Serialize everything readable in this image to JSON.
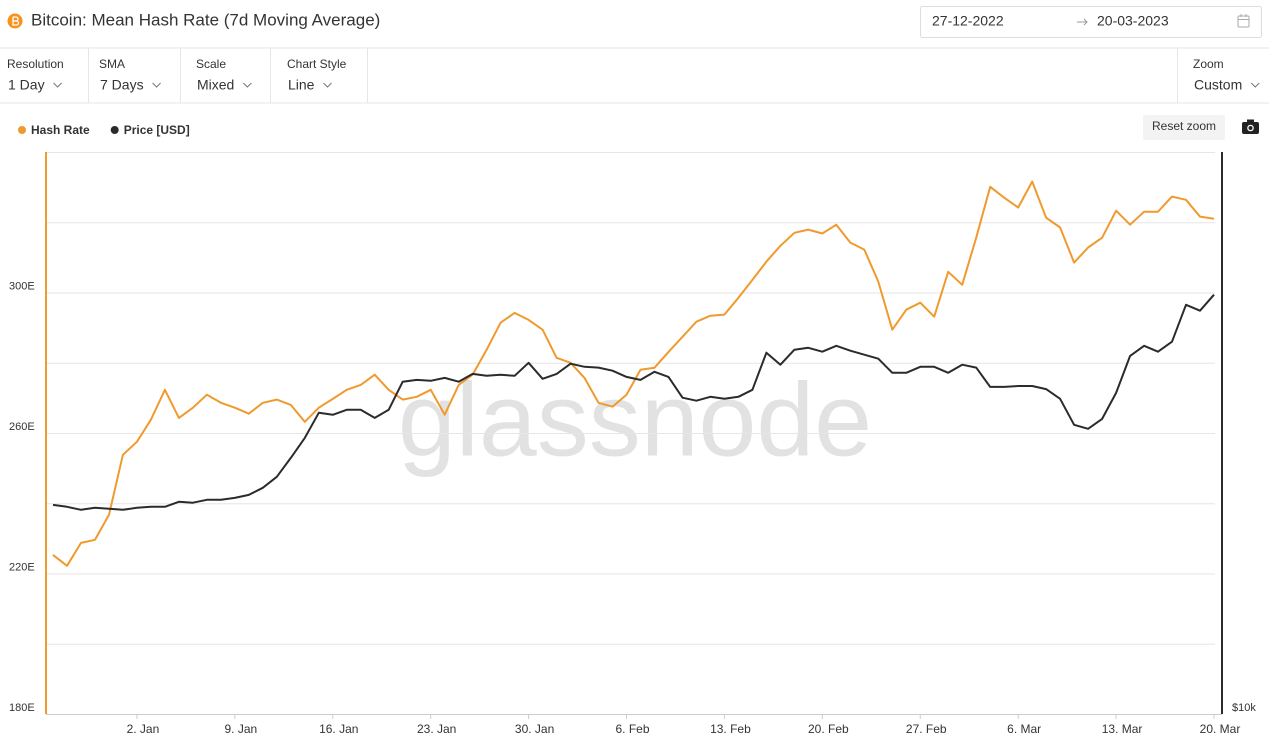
{
  "header": {
    "title": "Bitcoin: Mean Hash Rate (7d Moving Average)",
    "date_from": "27-12-2022",
    "date_to": "20-03-2023"
  },
  "controls": [
    {
      "label": "Resolution",
      "value": "1 Day"
    },
    {
      "label": "SMA",
      "value": "7 Days"
    },
    {
      "label": "Scale",
      "value": "Mixed"
    },
    {
      "label": "Chart Style",
      "value": "Line"
    },
    {
      "label": "Zoom",
      "value": "Custom"
    }
  ],
  "reset_zoom": "Reset zoom",
  "chart_data": {
    "type": "line",
    "watermark": "glassnode",
    "x": [
      "2022-12-27",
      "2022-12-28",
      "2022-12-29",
      "2022-12-30",
      "2022-12-31",
      "2023-01-01",
      "2023-01-02",
      "2023-01-03",
      "2023-01-04",
      "2023-01-05",
      "2023-01-06",
      "2023-01-07",
      "2023-01-08",
      "2023-01-09",
      "2023-01-10",
      "2023-01-11",
      "2023-01-12",
      "2023-01-13",
      "2023-01-14",
      "2023-01-15",
      "2023-01-16",
      "2023-01-17",
      "2023-01-18",
      "2023-01-19",
      "2023-01-20",
      "2023-01-21",
      "2023-01-22",
      "2023-01-23",
      "2023-01-24",
      "2023-01-25",
      "2023-01-26",
      "2023-01-27",
      "2023-01-28",
      "2023-01-29",
      "2023-01-30",
      "2023-01-31",
      "2023-02-01",
      "2023-02-02",
      "2023-02-03",
      "2023-02-04",
      "2023-02-05",
      "2023-02-06",
      "2023-02-07",
      "2023-02-08",
      "2023-02-09",
      "2023-02-10",
      "2023-02-11",
      "2023-02-12",
      "2023-02-13",
      "2023-02-14",
      "2023-02-15",
      "2023-02-16",
      "2023-02-17",
      "2023-02-18",
      "2023-02-19",
      "2023-02-20",
      "2023-02-21",
      "2023-02-22",
      "2023-02-23",
      "2023-02-24",
      "2023-02-25",
      "2023-02-26",
      "2023-02-27",
      "2023-02-28",
      "2023-03-01",
      "2023-03-02",
      "2023-03-03",
      "2023-03-04",
      "2023-03-05",
      "2023-03-06",
      "2023-03-07",
      "2023-03-08",
      "2023-03-09",
      "2023-03-10",
      "2023-03-11",
      "2023-03-12",
      "2023-03-13",
      "2023-03-14",
      "2023-03-15",
      "2023-03-16",
      "2023-03-17",
      "2023-03-18",
      "2023-03-19",
      "2023-03-20"
    ],
    "xlim": [
      "2022-12-27",
      "2023-03-20"
    ],
    "xticks": [
      {
        "value": "2023-01-02",
        "label": "2. Jan"
      },
      {
        "value": "2023-01-09",
        "label": "9. Jan"
      },
      {
        "value": "2023-01-16",
        "label": "16. Jan"
      },
      {
        "value": "2023-01-23",
        "label": "23. Jan"
      },
      {
        "value": "2023-01-30",
        "label": "30. Jan"
      },
      {
        "value": "2023-02-06",
        "label": "6. Feb"
      },
      {
        "value": "2023-02-13",
        "label": "13. Feb"
      },
      {
        "value": "2023-02-20",
        "label": "20. Feb"
      },
      {
        "value": "2023-02-27",
        "label": "27. Feb"
      },
      {
        "value": "2023-03-06",
        "label": "6. Mar"
      },
      {
        "value": "2023-03-13",
        "label": "13. Mar"
      },
      {
        "value": "2023-03-20",
        "label": "20. Mar"
      }
    ],
    "ylim": [
      180,
      340
    ],
    "yticks": [
      {
        "value": 180,
        "label": "180E"
      },
      {
        "value": 220,
        "label": "220E"
      },
      {
        "value": 260,
        "label": "260E"
      },
      {
        "value": 300,
        "label": "300E"
      }
    ],
    "ygrid": [
      200,
      220,
      240,
      260,
      280,
      300,
      320,
      340
    ],
    "y2lim": [
      10000,
      40000
    ],
    "y2log": true,
    "y2ticks": [
      {
        "value": 10000,
        "label": "$10k"
      }
    ],
    "series": [
      {
        "name": "Hash Rate",
        "color": "#f09a2e",
        "values": [
          225.3,
          222.2,
          228.7,
          229.6,
          236.7,
          253.8,
          257.5,
          263.8,
          272.3,
          264.3,
          267.2,
          270.9,
          268.6,
          267.2,
          265.5,
          268.6,
          269.5,
          268,
          263.2,
          267.2,
          269.7,
          272.3,
          273.7,
          276.6,
          272.3,
          269.5,
          270.3,
          272.3,
          265.2,
          273.7,
          276.6,
          283.7,
          291.4,
          294.2,
          292.2,
          289.4,
          281.4,
          280,
          275.7,
          268.6,
          267.5,
          270.9,
          278,
          278.6,
          283.1,
          287.4,
          291.7,
          293.4,
          293.7,
          298.5,
          303.6,
          308.8,
          313.3,
          317,
          317.9,
          316.8,
          319.3,
          314.2,
          312.2,
          303.1,
          289.4,
          295.1,
          297.1,
          293.1,
          305.9,
          302.2,
          315.6,
          330.1,
          327,
          324.2,
          331.6,
          321.3,
          318.5,
          308.5,
          312.8,
          315.6,
          323.3,
          319.3,
          323,
          323,
          327.3,
          326.4,
          321.6,
          321
        ]
      },
      {
        "name": "Price [USD]",
        "color": "#2b2b2b",
        "axis": "y2",
        "values": [
          16750,
          16670,
          16550,
          16630,
          16590,
          16550,
          16630,
          16670,
          16670,
          16880,
          16840,
          16960,
          16960,
          17040,
          17170,
          17470,
          17950,
          18810,
          19760,
          21020,
          20920,
          21180,
          21180,
          20760,
          21180,
          22700,
          22800,
          22750,
          22910,
          22700,
          23140,
          23030,
          23090,
          23030,
          23780,
          22860,
          23140,
          23730,
          23550,
          23500,
          23320,
          22970,
          22800,
          23260,
          22970,
          21820,
          21660,
          21870,
          21760,
          21870,
          22250,
          24380,
          23670,
          24560,
          24680,
          24440,
          24800,
          24500,
          24260,
          24020,
          23200,
          23200,
          23550,
          23550,
          23200,
          23670,
          23500,
          22410,
          22410,
          22460,
          22460,
          22290,
          21760,
          20410,
          20210,
          20710,
          22080,
          24190,
          24800,
          24440,
          25050,
          27440,
          27040,
          28130
        ]
      }
    ]
  }
}
